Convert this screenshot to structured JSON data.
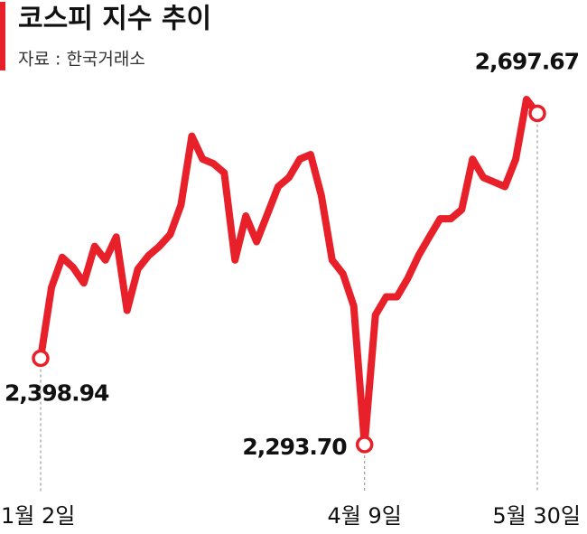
{
  "chart_data": {
    "type": "line",
    "title": "코스피 지수 추이",
    "source": "자료 : 한국거래소",
    "color": "#e8202a",
    "categories": [
      "1월 2일",
      null,
      null,
      null,
      null,
      null,
      null,
      null,
      null,
      null,
      null,
      null,
      null,
      null,
      null,
      null,
      null,
      null,
      null,
      null,
      null,
      null,
      null,
      null,
      null,
      null,
      null,
      null,
      null,
      null,
      "4월 9일",
      null,
      null,
      null,
      null,
      null,
      null,
      null,
      null,
      null,
      null,
      null,
      null,
      null,
      null,
      null,
      "5월 30일"
    ],
    "values": [
      2398.94,
      2485.2,
      2522.1,
      2509.8,
      2490.8,
      2535.5,
      2518.8,
      2546.8,
      2457.2,
      2507.6,
      2524.3,
      2535.5,
      2550.1,
      2585.9,
      2669.9,
      2641.9,
      2636.3,
      2625.1,
      2518.8,
      2572.5,
      2541.1,
      2574.7,
      2608.3,
      2619.5,
      2641.9,
      2647.5,
      2597.1,
      2518.8,
      2501.9,
      2462.7,
      2293.7,
      2451.6,
      2473.9,
      2473.9,
      2496.3,
      2524.3,
      2546.8,
      2569.1,
      2569.1,
      2580.3,
      2641.9,
      2619.5,
      2613.9,
      2608.3,
      2641.9,
      2714.7,
      2697.67
    ],
    "value_labels": [
      "2,398.94",
      null,
      null,
      null,
      null,
      null,
      null,
      null,
      null,
      null,
      null,
      null,
      null,
      null,
      null,
      null,
      null,
      null,
      null,
      null,
      null,
      null,
      null,
      null,
      null,
      null,
      null,
      null,
      null,
      null,
      "2,293.70",
      null,
      null,
      null,
      null,
      null,
      null,
      null,
      null,
      null,
      null,
      null,
      null,
      null,
      null,
      null,
      "2,697.67"
    ]
  }
}
